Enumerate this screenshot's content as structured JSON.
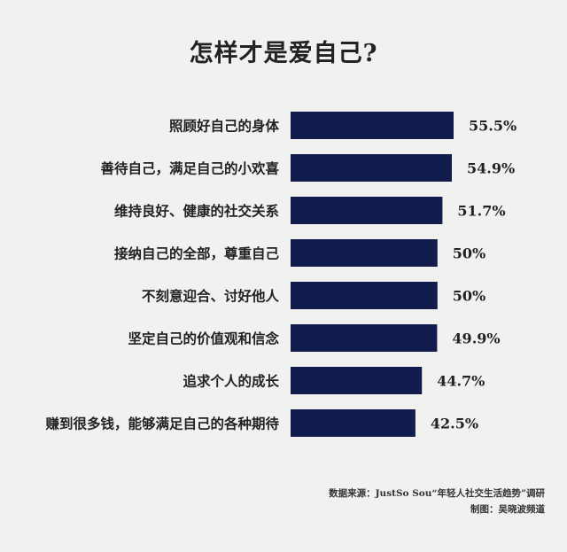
{
  "chart_data": {
    "type": "bar",
    "orientation": "horizontal",
    "title": "怎样才是爱自己?",
    "categories": [
      "照顾好自己的身体",
      "善待自己，满足自己的小欢喜",
      "维持良好、健康的社交关系",
      "接纳自己的全部，尊重自己",
      "不刻意迎合、讨好他人",
      "坚定自己的价值观和信念",
      "追求个人的成长",
      "赚到很多钱，能够满足自己的各种期待"
    ],
    "values": [
      55.5,
      54.9,
      51.7,
      50,
      50,
      49.9,
      44.7,
      42.5
    ],
    "value_labels": [
      "55.5%",
      "54.9%",
      "51.7%",
      "50%",
      "50%",
      "49.9%",
      "44.7%",
      "42.5%"
    ],
    "bar_color": "#121d4e",
    "grid": false,
    "legend": "none"
  },
  "footer": {
    "source": "数据来源：JustSo Sou“年轻人社交生活趋势”调研",
    "credit": "制图：吴晓波频道"
  }
}
